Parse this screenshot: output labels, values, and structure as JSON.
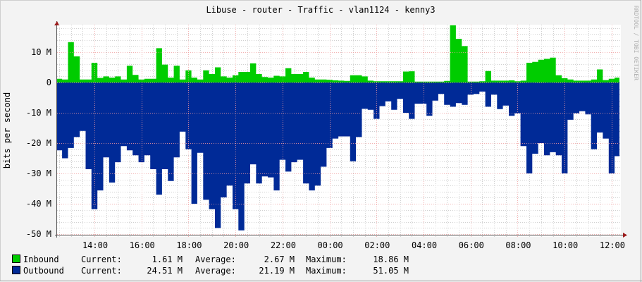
{
  "title": "Libuse - router - Traffic - vlan1124 - kenny3",
  "watermark": "RRDTOOL / TOBI OETIKER",
  "chart_data": {
    "type": "area",
    "title": "Libuse - router - Traffic - vlan1124 - kenny3",
    "ylabel": "bits per second",
    "xlabel": "",
    "ylim": [
      -51,
      19
    ],
    "yticks": [
      10,
      0,
      -10,
      -20,
      -30,
      -40,
      -50
    ],
    "ytick_labels": [
      "10 M",
      "0",
      "-10 M",
      "-20 M",
      "-30 M",
      "-40 M",
      "-50 M"
    ],
    "xtick_labels": [
      "14:00",
      "16:00",
      "18:00",
      "20:00",
      "22:00",
      "00:00",
      "02:00",
      "04:00",
      "06:00",
      "08:00",
      "10:00",
      "12:00"
    ],
    "grid": true,
    "legend_placement": "bottom-left",
    "unit": "M",
    "x": [
      "12:30",
      "12:45",
      "13:00",
      "13:15",
      "13:30",
      "13:45",
      "14:00",
      "14:15",
      "14:30",
      "14:45",
      "15:00",
      "15:15",
      "15:30",
      "15:45",
      "16:00",
      "16:15",
      "16:30",
      "16:45",
      "17:00",
      "17:15",
      "17:30",
      "17:45",
      "18:00",
      "18:15",
      "18:30",
      "18:45",
      "19:00",
      "19:15",
      "19:30",
      "19:45",
      "20:00",
      "20:15",
      "20:30",
      "20:45",
      "21:00",
      "21:15",
      "21:30",
      "21:45",
      "22:00",
      "22:15",
      "22:30",
      "22:45",
      "23:00",
      "23:15",
      "23:30",
      "23:45",
      "00:00",
      "00:15",
      "00:30",
      "00:45",
      "01:00",
      "01:15",
      "01:30",
      "01:45",
      "02:00",
      "02:15",
      "02:30",
      "02:45",
      "03:00",
      "03:15",
      "03:30",
      "03:45",
      "04:00",
      "04:15",
      "04:30",
      "04:45",
      "05:00",
      "05:15",
      "05:30",
      "05:45",
      "06:00",
      "06:15",
      "06:30",
      "06:45",
      "07:00",
      "07:15",
      "07:30",
      "07:45",
      "08:00",
      "08:15",
      "08:30",
      "08:45",
      "09:00",
      "09:15",
      "09:30",
      "09:45",
      "10:00",
      "10:15",
      "10:30",
      "10:45",
      "11:00",
      "11:15",
      "11:30",
      "11:45",
      "12:00",
      "12:15"
    ],
    "series": [
      {
        "name": "Inbound",
        "color": "#00cc00",
        "values": [
          1.2,
          1,
          13.3,
          8.6,
          1,
          1,
          6.5,
          1.5,
          2,
          1.6,
          2,
          1,
          5.5,
          2.5,
          1,
          1.2,
          1.2,
          11.3,
          5.9,
          1.6,
          5.5,
          1,
          4,
          1.6,
          1,
          4,
          2.8,
          5,
          2,
          1.6,
          2.4,
          3.5,
          3.5,
          6.3,
          2.8,
          1.8,
          1.6,
          2.2,
          2,
          4.7,
          2.8,
          2.8,
          3.5,
          1.6,
          1,
          1,
          0.9,
          0.7,
          0.6,
          0.5,
          2.4,
          2.4,
          2,
          0.6,
          0.4,
          0.4,
          0.4,
          0.4,
          0.4,
          3.6,
          3.7,
          0.3,
          0.3,
          0.3,
          0.3,
          0.3,
          0.5,
          18.86,
          14.4,
          12,
          0.3,
          0.3,
          0.4,
          3.8,
          0.6,
          0.6,
          0.6,
          0.7,
          0.4,
          0.6,
          6.5,
          6.8,
          7.5,
          7.8,
          8.2,
          2.4,
          1.4,
          1,
          0.6,
          0.6,
          0.6,
          1,
          4.3,
          0.8,
          1.2,
          1.61
        ]
      },
      {
        "name": "Outbound",
        "color": "#002a97",
        "values": [
          -22.4,
          -25,
          -21.6,
          -18,
          -16,
          -28.6,
          -41.8,
          -35.6,
          -24.7,
          -33,
          -26.3,
          -21,
          -22.4,
          -24,
          -26.3,
          -24,
          -28.6,
          -37,
          -28.6,
          -32.5,
          -24.7,
          -16.2,
          -22,
          -40,
          -23.2,
          -38.7,
          -41.8,
          -48,
          -37.9,
          -34,
          -41.8,
          -48.8,
          -33.3,
          -27,
          -33.3,
          -31,
          -31.3,
          -35.6,
          -25.5,
          -29.4,
          -26.3,
          -25.5,
          -33.3,
          -35.6,
          -34,
          -27.8,
          -21.6,
          -18.5,
          -17.8,
          -17.8,
          -26,
          -18,
          -8.7,
          -9,
          -12,
          -7.8,
          -6.2,
          -9,
          -5.4,
          -10,
          -12,
          -7,
          -7,
          -11,
          -6,
          -3.8,
          -7.4,
          -8,
          -6.8,
          -7.4,
          -4,
          -3.8,
          -3,
          -8,
          -4,
          -8.8,
          -7.6,
          -11,
          -10.2,
          -21,
          -30,
          -23.5,
          -20,
          -24,
          -23,
          -24,
          -30,
          -12.3,
          -10.2,
          -9.5,
          -10.5,
          -22,
          -16.5,
          -18.5,
          -30,
          -24.3
        ]
      }
    ]
  },
  "legend": [
    {
      "name": "Inbound",
      "color": "#00cc00",
      "current_label": "Current:",
      "current": "1.61 M",
      "average_label": "Average:",
      "average": "2.67 M",
      "maximum_label": "Maximum:",
      "maximum": "18.86 M"
    },
    {
      "name": "Outbound",
      "color": "#002a97",
      "current_label": "Current:",
      "current": "24.51 M",
      "average_label": "Average:",
      "average": "21.19 M",
      "maximum_label": "Maximum:",
      "maximum": "51.05 M"
    }
  ]
}
